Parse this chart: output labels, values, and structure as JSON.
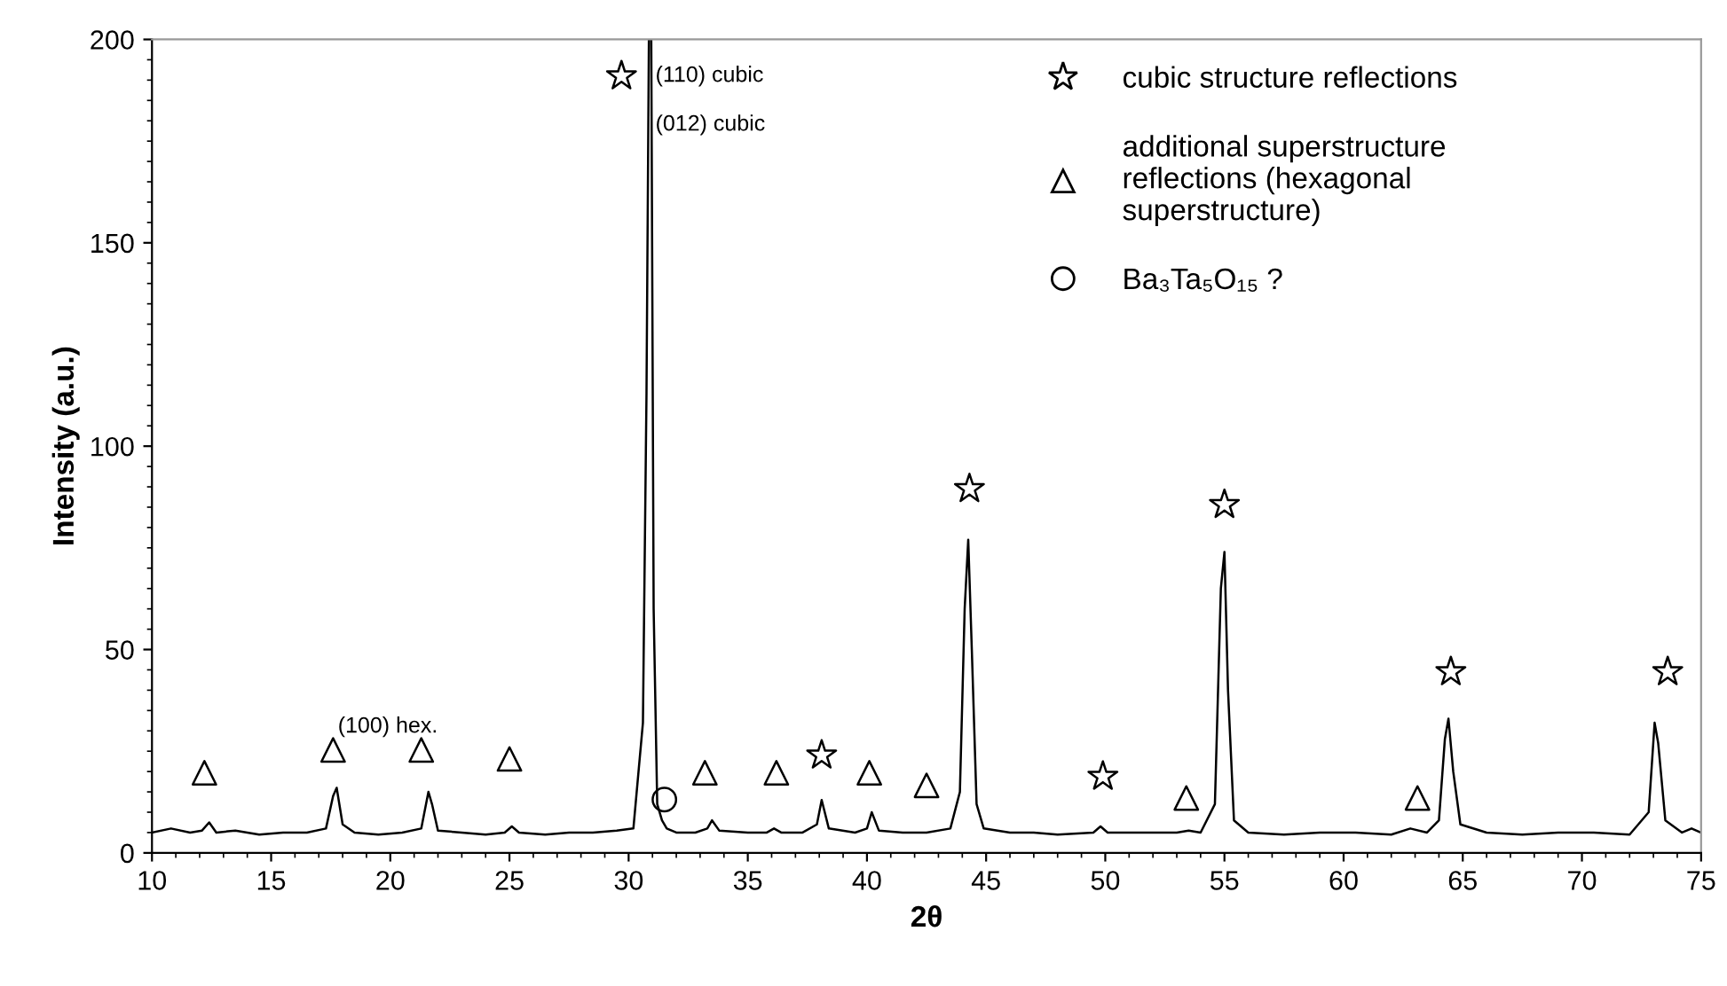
{
  "chart_data": {
    "type": "line",
    "xlabel": "2θ",
    "ylabel": "Intensity (a.u.)",
    "xlim": [
      10,
      75
    ],
    "ylim": [
      0,
      200
    ],
    "xticks": [
      10,
      15,
      20,
      25,
      30,
      35,
      40,
      45,
      50,
      55,
      60,
      65,
      70,
      75
    ],
    "yticks": [
      0,
      50,
      100,
      150,
      200
    ],
    "grid": false,
    "legend": "top right",
    "series": [
      {
        "color": "#000000",
        "marker": "none",
        "x": [
          10,
          10.8,
          11.6,
          12.1,
          12.4,
          12.7,
          13.5,
          14.5,
          15.5,
          16.5,
          17.3,
          17.6,
          17.75,
          18.0,
          18.5,
          19.5,
          20.5,
          21.3,
          21.6,
          21.75,
          22.0,
          23,
          24,
          24.8,
          25.1,
          25.4,
          26.5,
          27.5,
          28.5,
          29.5,
          30.2,
          30.6,
          30.75,
          30.85,
          30.95,
          31.05,
          31.2,
          31.4,
          31.6,
          32.0,
          32.8,
          33.3,
          33.5,
          33.8,
          35,
          35.8,
          36.1,
          36.4,
          37.3,
          37.9,
          38.1,
          38.4,
          39.5,
          40.0,
          40.2,
          40.5,
          41.5,
          42.5,
          43.5,
          43.9,
          44.1,
          44.25,
          44.4,
          44.6,
          44.9,
          46,
          47,
          48,
          49.5,
          49.8,
          50.1,
          51.5,
          53.0,
          53.5,
          54.0,
          54.6,
          54.85,
          55.0,
          55.15,
          55.4,
          56,
          57.5,
          59,
          60.5,
          62,
          62.8,
          63.5,
          64.0,
          64.25,
          64.4,
          64.6,
          64.9,
          66,
          67.5,
          69,
          70.5,
          72,
          72.8,
          73.05,
          73.2,
          73.5,
          74.2,
          74.6,
          75
        ],
        "values": [
          5,
          6,
          5,
          5.5,
          7.5,
          5,
          5.5,
          4.5,
          5,
          5,
          6,
          14,
          16,
          7,
          5,
          4.5,
          5,
          6,
          15,
          12,
          5.5,
          5,
          4.5,
          5,
          6.5,
          5,
          4.5,
          5,
          5,
          5.5,
          6,
          32,
          113,
          200,
          200,
          60,
          12,
          8,
          6,
          5,
          5,
          6,
          8,
          5.5,
          5,
          5,
          6,
          5,
          5,
          7,
          13,
          6,
          5,
          6,
          10,
          5.5,
          5,
          5,
          6,
          15,
          60,
          77,
          50,
          12,
          6,
          5,
          5,
          4.5,
          5,
          6.5,
          5,
          5,
          5,
          5.5,
          5,
          12,
          65,
          74,
          40,
          8,
          5,
          4.5,
          5,
          5,
          4.5,
          6,
          5,
          8,
          28,
          33,
          20,
          7,
          5,
          4.5,
          5,
          5,
          4.5,
          10,
          32,
          27,
          8,
          5,
          6,
          5
        ]
      },
      {
        "type": "scatter",
        "name": "cubic structure reflections",
        "color": "#000000",
        "marker": "star",
        "x": [
          29.7,
          38.1,
          44.3,
          49.9,
          55.0,
          64.5,
          73.6
        ],
        "values": [
          191,
          24,
          89.5,
          18.8,
          85.6,
          44.5,
          44.5
        ]
      },
      {
        "type": "scatter",
        "name": "additional superstructure\nreflections (hexagonal\nsuperstructure)",
        "color": "#000000",
        "marker": "triangle",
        "x": [
          12.2,
          17.6,
          21.3,
          25.0,
          33.2,
          36.2,
          40.1,
          42.5,
          53.4,
          63.1
        ],
        "values": [
          19.7,
          25.3,
          25.3,
          23.1,
          19.7,
          19.7,
          19.7,
          16.6,
          13.5,
          13.5
        ]
      },
      {
        "type": "scatter",
        "name": "Ba₃Ta₅O₁₅ ?",
        "color": "#000000",
        "marker": "circle",
        "x": [
          31.5
        ],
        "values": [
          13.1
        ]
      }
    ],
    "annotations": [
      "(110) cubic",
      "(012) cubic",
      "(100) hex."
    ]
  }
}
